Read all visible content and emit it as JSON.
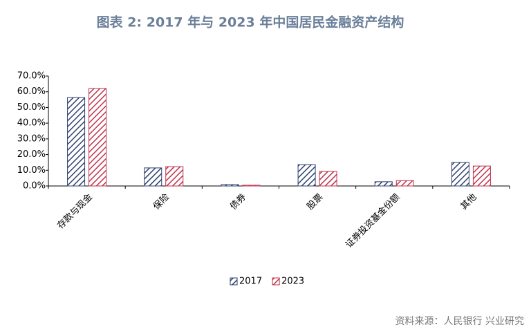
{
  "chart_data": {
    "type": "bar",
    "title": "图表 2:   2017 年与 2023 年中国居民金融资产结构",
    "source": "资料来源：人民银行 兴业研究",
    "categories": [
      "存款与现金",
      "保险",
      "债券",
      "股票",
      "证券投资基金份额",
      "其他"
    ],
    "series": [
      {
        "name": "2017",
        "color": "#2e3f6e",
        "values": [
          56.3,
          11.5,
          0.9,
          13.6,
          2.7,
          15.0
        ]
      },
      {
        "name": "2023",
        "color": "#c0304a",
        "values": [
          62.1,
          12.3,
          0.5,
          9.3,
          3.4,
          12.7
        ]
      }
    ],
    "ylim": [
      0,
      70
    ],
    "yticks": [
      {
        "value": 0,
        "label": "0.0%"
      },
      {
        "value": 10,
        "label": "10.0%"
      },
      {
        "value": 20,
        "label": "20.0%"
      },
      {
        "value": 30,
        "label": "30.0%"
      },
      {
        "value": 40,
        "label": "40.0%"
      },
      {
        "value": 50,
        "label": "50.0%"
      },
      {
        "value": 60,
        "label": "60.0%"
      },
      {
        "value": 70,
        "label": "70.0%"
      }
    ],
    "legend": "bottom"
  }
}
